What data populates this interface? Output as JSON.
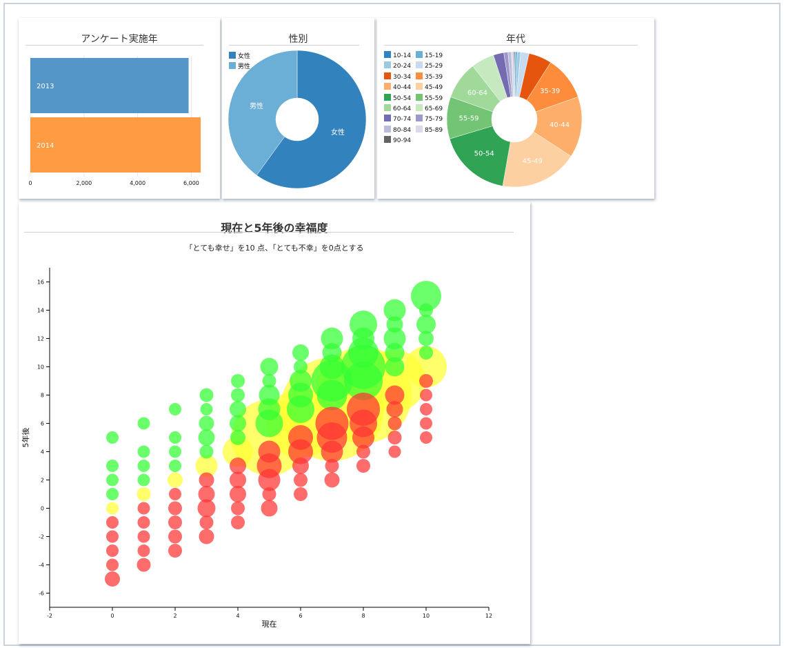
{
  "colors": {
    "bar": [
      "#4a90c4",
      "#ff9638"
    ],
    "gender": [
      "#3182bd",
      "#6baed6"
    ],
    "age": [
      "#3182bd",
      "#6baed6",
      "#9ecae1",
      "#c6dbef",
      "#e6550d",
      "#fd8d3c",
      "#fdae6b",
      "#fdd0a2",
      "#31a354",
      "#74c476",
      "#a1d99b",
      "#c7e9c0",
      "#756bb1",
      "#9e9ac8",
      "#bcbddc",
      "#dadaeb",
      "#636363"
    ],
    "bubble": {
      "green": "#33ff33",
      "yellow": "#ffff33",
      "red": "#ff3333"
    }
  },
  "chart_data": [
    {
      "type": "bar",
      "title": "アンケート実施年",
      "categories": [
        "2013",
        "2014"
      ],
      "values": [
        5900,
        6350
      ],
      "xlim": [
        0,
        6400
      ],
      "ticks": [
        "0",
        "2,000",
        "4,000",
        "6,000"
      ],
      "tick_values": [
        0,
        2000,
        4000,
        6000
      ]
    },
    {
      "type": "pie",
      "title": "性別",
      "legend": [
        "女性",
        "男性"
      ],
      "slice_labels": [
        "女性",
        "男性"
      ],
      "values": [
        0.6,
        0.4
      ]
    },
    {
      "type": "pie",
      "title": "年代",
      "legend": [
        "10-14",
        "15-19",
        "20-24",
        "25-29",
        "30-34",
        "35-39",
        "40-44",
        "45-49",
        "50-54",
        "55-59",
        "60-64",
        "65-69",
        "70-74",
        "75-79",
        "80-84",
        "85-89",
        "90-94"
      ],
      "slice_labels": [
        "",
        "",
        "",
        "",
        "",
        "35-39",
        "40-44",
        "45-49",
        "50-54",
        "55-59",
        "60-64",
        "",
        "",
        "",
        "",
        "",
        ""
      ],
      "values": [
        0.2,
        0.5,
        0.8,
        2.0,
        5.5,
        10.5,
        14.5,
        18.5,
        17.5,
        10.0,
        9.0,
        5.5,
        2.5,
        1.0,
        0.8,
        0.5,
        0.2
      ]
    },
    {
      "type": "scatter",
      "title": "現在と5年後の幸福度",
      "subtitle": "「とても幸せ」を10 点、「とても不幸」を0点とする",
      "xlabel": "現在",
      "ylabel": "5年後",
      "xlim": [
        -2,
        12
      ],
      "ylim": [
        -7,
        17
      ],
      "x_ticks": [
        "-2",
        "0",
        "2",
        "4",
        "6",
        "8",
        "10",
        "12"
      ],
      "x_tick_values": [
        -2,
        0,
        2,
        4,
        6,
        8,
        10,
        12
      ],
      "y_ticks": [
        "-6",
        "-4",
        "-2",
        "0",
        "2",
        "4",
        "6",
        "8",
        "10",
        "12",
        "14",
        "16"
      ],
      "y_tick_values": [
        -6,
        -4,
        -2,
        0,
        2,
        4,
        6,
        8,
        10,
        12,
        14,
        16
      ],
      "series": [
        {
          "color": "yellow",
          "points": [
            [
              0,
              0,
              9
            ],
            [
              1,
              1,
              10
            ],
            [
              2,
              2,
              11
            ],
            [
              3,
              3,
              16
            ],
            [
              4,
              4,
              22
            ],
            [
              5,
              5,
              55
            ],
            [
              6,
              6,
              50
            ],
            [
              7,
              7,
              75
            ],
            [
              8,
              8,
              70
            ],
            [
              9,
              9,
              45
            ],
            [
              10,
              10,
              30
            ]
          ]
        },
        {
          "color": "green",
          "points": [
            [
              0,
              5,
              9
            ],
            [
              0,
              3,
              9
            ],
            [
              0,
              2,
              9
            ],
            [
              0,
              1,
              9
            ],
            [
              1,
              6,
              9
            ],
            [
              1,
              4,
              9
            ],
            [
              1,
              3,
              9
            ],
            [
              1,
              2,
              9
            ],
            [
              2,
              7,
              9
            ],
            [
              2,
              5,
              9
            ],
            [
              2,
              4,
              9
            ],
            [
              2,
              3,
              9
            ],
            [
              3,
              8,
              10
            ],
            [
              3,
              7,
              9
            ],
            [
              3,
              6,
              11
            ],
            [
              3,
              5,
              12
            ],
            [
              3,
              4,
              10
            ],
            [
              4,
              9,
              10
            ],
            [
              4,
              8,
              10
            ],
            [
              4,
              7,
              12
            ],
            [
              4,
              6,
              12
            ],
            [
              4,
              5,
              11
            ],
            [
              5,
              10,
              13
            ],
            [
              5,
              9,
              10
            ],
            [
              5,
              8,
              15
            ],
            [
              5,
              7,
              16
            ],
            [
              5,
              6,
              20
            ],
            [
              6,
              11,
              12
            ],
            [
              6,
              10,
              10
            ],
            [
              6,
              9,
              16
            ],
            [
              6,
              8,
              18
            ],
            [
              6,
              7,
              20
            ],
            [
              7,
              12,
              16
            ],
            [
              7,
              11,
              14
            ],
            [
              7,
              10,
              18
            ],
            [
              7,
              9,
              30
            ],
            [
              7,
              8,
              22
            ],
            [
              8,
              13,
              20
            ],
            [
              8,
              12,
              16
            ],
            [
              8,
              11,
              22
            ],
            [
              8,
              10,
              32
            ],
            [
              8,
              9,
              28
            ],
            [
              9,
              14,
              16
            ],
            [
              9,
              13,
              12
            ],
            [
              9,
              12,
              16
            ],
            [
              9,
              11,
              14
            ],
            [
              9,
              10,
              14
            ],
            [
              10,
              15,
              22
            ],
            [
              10,
              14,
              10
            ],
            [
              10,
              13,
              14
            ],
            [
              10,
              12,
              11
            ],
            [
              10,
              11,
              10
            ]
          ]
        },
        {
          "color": "red",
          "points": [
            [
              0,
              -1,
              9
            ],
            [
              0,
              -2,
              9
            ],
            [
              0,
              -3,
              9
            ],
            [
              0,
              -4,
              9
            ],
            [
              0,
              -5,
              11
            ],
            [
              1,
              0,
              9
            ],
            [
              1,
              -1,
              9
            ],
            [
              1,
              -2,
              9
            ],
            [
              1,
              -3,
              9
            ],
            [
              1,
              -4,
              10
            ],
            [
              2,
              1,
              9
            ],
            [
              2,
              0,
              10
            ],
            [
              2,
              -1,
              10
            ],
            [
              2,
              -2,
              10
            ],
            [
              2,
              -3,
              10
            ],
            [
              3,
              2,
              11
            ],
            [
              3,
              1,
              12
            ],
            [
              3,
              0,
              13
            ],
            [
              3,
              -1,
              10
            ],
            [
              3,
              -2,
              11
            ],
            [
              4,
              3,
              12
            ],
            [
              4,
              2,
              12
            ],
            [
              4,
              1,
              12
            ],
            [
              4,
              0,
              10
            ],
            [
              4,
              -1,
              10
            ],
            [
              5,
              4,
              16
            ],
            [
              5,
              3,
              18
            ],
            [
              5,
              2,
              16
            ],
            [
              5,
              1,
              10
            ],
            [
              5,
              0,
              12
            ],
            [
              6,
              5,
              18
            ],
            [
              6,
              4,
              18
            ],
            [
              6,
              3,
              12
            ],
            [
              6,
              2,
              10
            ],
            [
              6,
              1,
              10
            ],
            [
              7,
              6,
              24
            ],
            [
              7,
              5,
              22
            ],
            [
              7,
              4,
              16
            ],
            [
              7,
              3,
              10
            ],
            [
              7,
              2,
              11
            ],
            [
              8,
              7,
              24
            ],
            [
              8,
              6,
              20
            ],
            [
              8,
              5,
              16
            ],
            [
              8,
              4,
              10
            ],
            [
              8,
              3,
              10
            ],
            [
              9,
              8,
              14
            ],
            [
              9,
              7,
              12
            ],
            [
              9,
              6,
              10
            ],
            [
              9,
              5,
              10
            ],
            [
              9,
              4,
              9
            ],
            [
              10,
              9,
              10
            ],
            [
              10,
              8,
              9
            ],
            [
              10,
              7,
              9
            ],
            [
              10,
              6,
              9
            ],
            [
              10,
              5,
              9
            ]
          ]
        }
      ]
    }
  ]
}
